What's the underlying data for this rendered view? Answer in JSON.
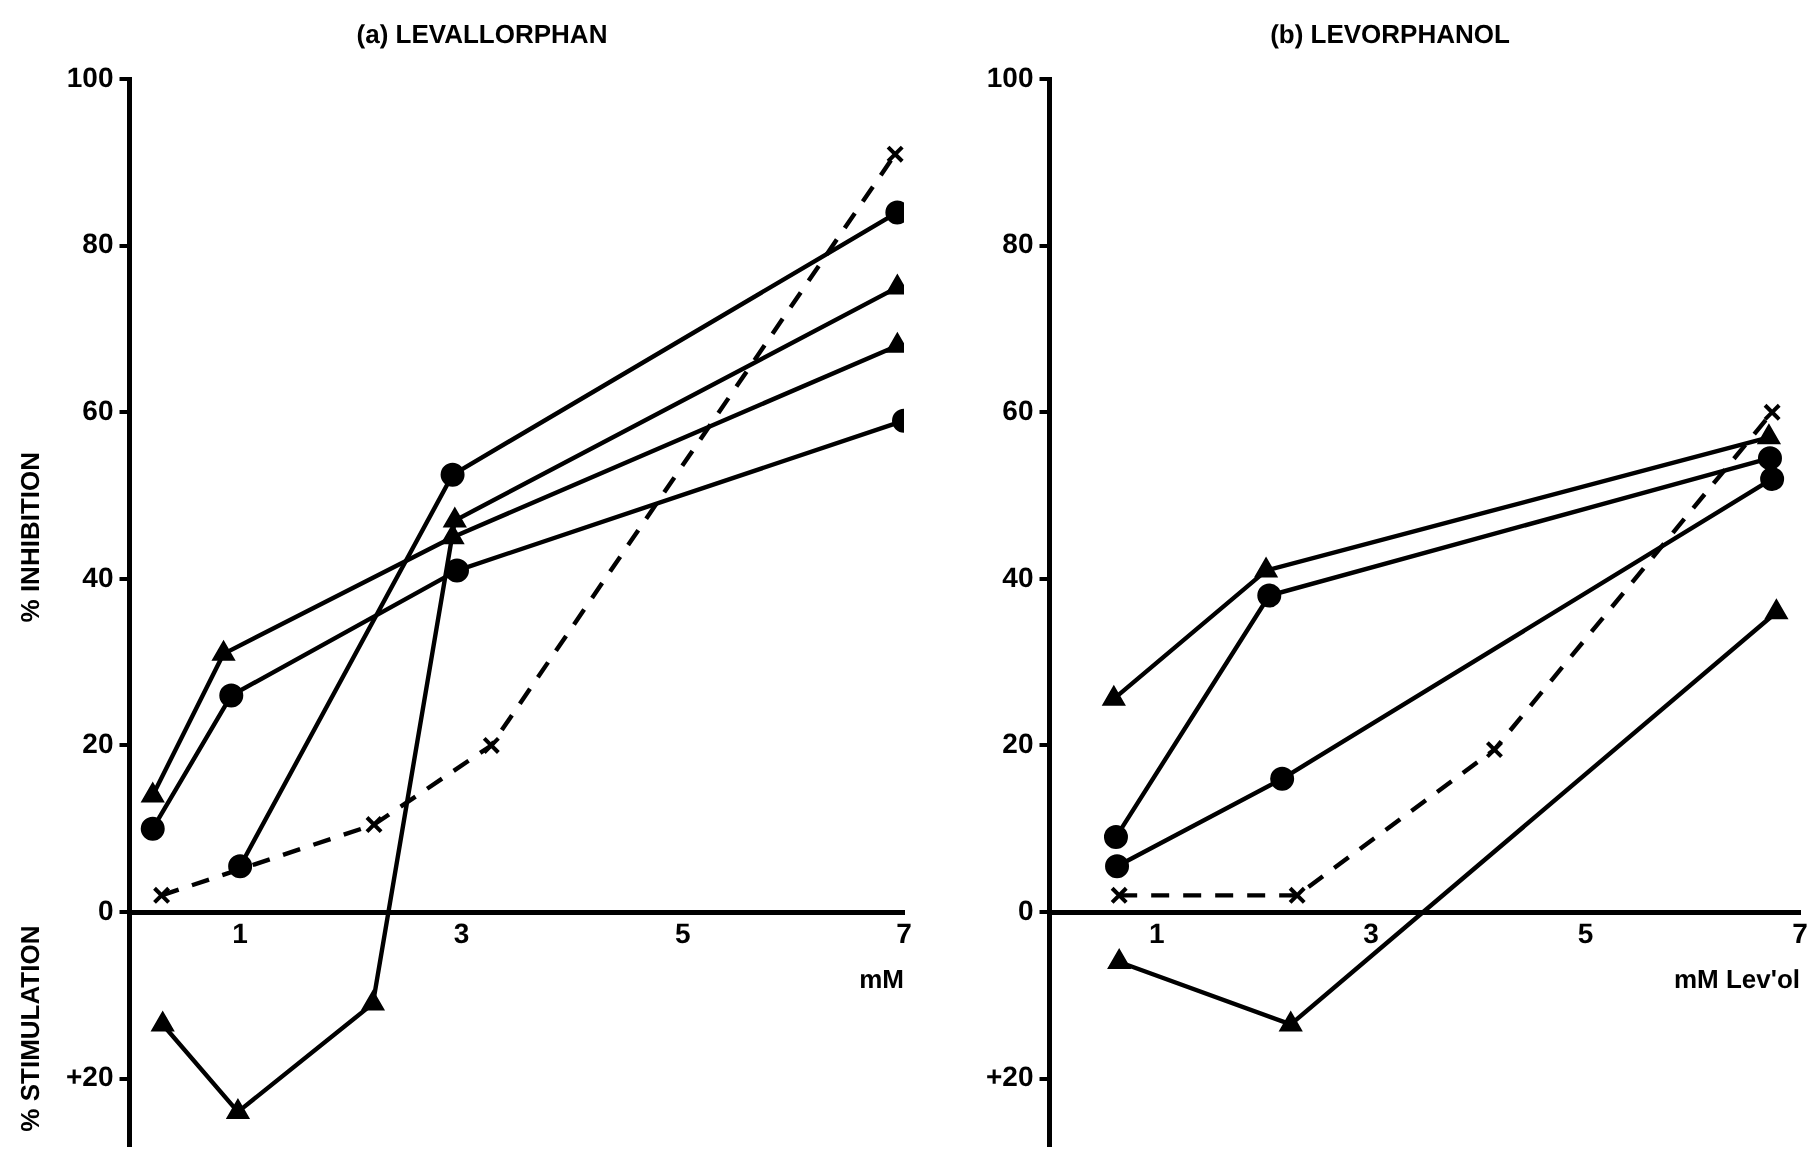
{
  "chart_data": [
    {
      "type": "line",
      "title": "(a) LEVALLORPHAN",
      "xlabel": "mM",
      "ylabel": "% INHIBITION",
      "annotations": [
        "% STIMULATION"
      ],
      "xlim": [
        0,
        7
      ],
      "xticks": [
        1,
        3,
        5,
        7
      ],
      "ylim": [
        -28,
        100
      ],
      "yticks": [
        {
          "value": -20,
          "label": "+20"
        },
        0,
        20,
        40,
        60,
        80,
        100
      ],
      "grid": false,
      "legend": false,
      "series": [
        {
          "color": "#000000",
          "marker": "triangle",
          "line_style": "solid",
          "x": [
            0.21,
            0.85,
            2.92,
            6.94
          ],
          "values": [
            14,
            31,
            45,
            68
          ]
        },
        {
          "color": "#000000",
          "marker": "circle",
          "line_style": "solid",
          "x": [
            0.21,
            0.92,
            2.96,
            7.0
          ],
          "values": [
            10,
            26,
            41,
            59
          ]
        },
        {
          "color": "#000000",
          "marker": "circle",
          "line_style": "solid",
          "x": [
            1.0,
            2.92,
            6.94
          ],
          "values": [
            5.5,
            52.5,
            84
          ]
        },
        {
          "color": "#000000",
          "marker": "triangle",
          "line_style": "solid",
          "x": [
            0.3,
            0.98,
            2.2,
            2.94,
            6.94
          ],
          "values": [
            -13.5,
            -24,
            -11,
            47,
            75
          ]
        },
        {
          "color": "#000000",
          "marker": "cross",
          "line_style": "dashed",
          "x": [
            0.29,
            2.21,
            3.27,
            6.92
          ],
          "values": [
            2,
            10.5,
            20,
            91
          ]
        }
      ]
    },
    {
      "type": "line",
      "title": "(b) LEVORPHANOL",
      "xlabel": "mM Lev'ol",
      "xlim": [
        0,
        7
      ],
      "xticks": [
        1,
        3,
        5,
        7
      ],
      "ylim": [
        -28,
        100
      ],
      "yticks": [
        {
          "value": -20,
          "label": "+20"
        },
        0,
        20,
        40,
        60,
        80,
        100
      ],
      "grid": false,
      "legend": false,
      "series": [
        {
          "color": "#000000",
          "marker": "triangle",
          "line_style": "solid",
          "x": [
            0.6,
            2.02,
            6.71
          ],
          "values": [
            25.6,
            41,
            57
          ]
        },
        {
          "color": "#000000",
          "marker": "circle",
          "line_style": "solid",
          "x": [
            0.62,
            2.05,
            6.72
          ],
          "values": [
            9,
            38,
            54.5
          ]
        },
        {
          "color": "#000000",
          "marker": "circle",
          "line_style": "solid",
          "x": [
            0.63,
            2.17,
            6.74
          ],
          "values": [
            5.5,
            16,
            52
          ]
        },
        {
          "color": "#000000",
          "marker": "triangle",
          "line_style": "solid",
          "x": [
            0.65,
            2.25,
            6.78
          ],
          "values": [
            -6,
            -13.5,
            36
          ]
        },
        {
          "color": "#000000",
          "marker": "cross",
          "line_style": "dashed",
          "x": [
            0.65,
            2.31,
            4.15,
            6.74
          ],
          "values": [
            2,
            2,
            19.5,
            60
          ]
        }
      ]
    }
  ]
}
